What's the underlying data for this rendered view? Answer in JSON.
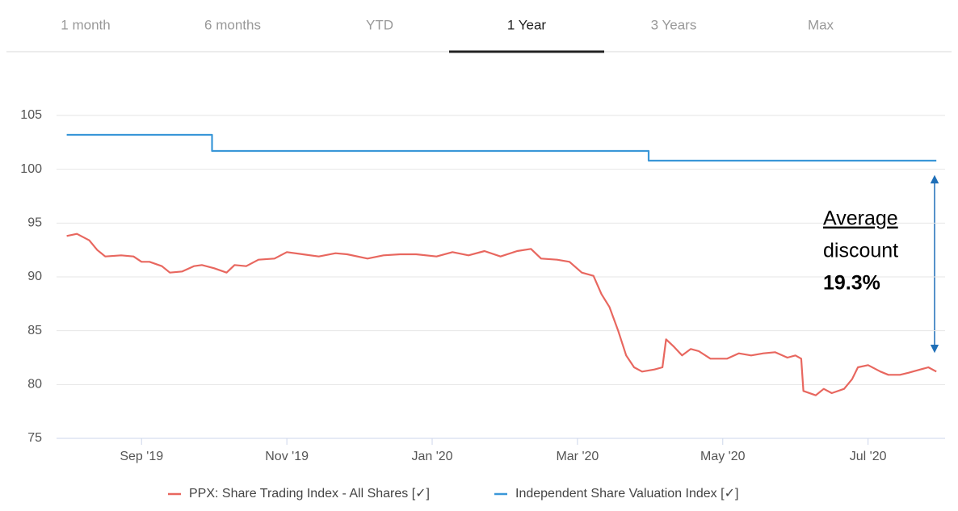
{
  "tabs": [
    "1 month",
    "6 months",
    "YTD",
    "1 Year",
    "3 Years",
    "Max"
  ],
  "selected_tab": 3,
  "chart_data": {
    "type": "line",
    "xlim": [
      -1.17,
      11.06
    ],
    "ylim": [
      75,
      105
    ],
    "xticks": [
      {
        "value": 0,
        "label": "Sep '19"
      },
      {
        "value": 2,
        "label": "Nov '19"
      },
      {
        "value": 4,
        "label": "Jan '20"
      },
      {
        "value": 6,
        "label": "Mar '20"
      },
      {
        "value": 8,
        "label": "May '20"
      },
      {
        "value": 10,
        "label": "Jul '20"
      }
    ],
    "yticks": [
      75,
      80,
      85,
      90,
      95,
      100,
      105
    ],
    "grid": true,
    "series": [
      {
        "name": "PPX: Share Trading Index - All Shares [✓]",
        "color": "#e8675f",
        "x": [
          -1.03,
          -0.89,
          -0.72,
          -0.61,
          -0.5,
          -0.28,
          -0.11,
          0,
          0.11,
          0.28,
          0.39,
          0.56,
          0.72,
          0.83,
          1.0,
          1.17,
          1.28,
          1.44,
          1.61,
          1.83,
          2.0,
          2.22,
          2.44,
          2.67,
          2.83,
          3.11,
          3.33,
          3.56,
          3.78,
          4.06,
          4.28,
          4.5,
          4.72,
          4.94,
          5.17,
          5.36,
          5.5,
          5.72,
          5.89,
          6.06,
          6.22,
          6.33,
          6.44,
          6.56,
          6.67,
          6.78,
          6.89,
          7.06,
          7.17,
          7.22,
          7.33,
          7.44,
          7.56,
          7.67,
          7.83,
          8.06,
          8.22,
          8.39,
          8.56,
          8.72,
          8.89,
          9.0,
          9.08,
          9.11,
          9.28,
          9.39,
          9.5,
          9.67,
          9.78,
          9.86,
          10.0,
          10.17,
          10.28,
          10.44,
          10.56,
          10.72,
          10.83,
          10.94
        ],
        "values": [
          93.8,
          94.0,
          93.4,
          92.5,
          91.9,
          92.0,
          91.9,
          91.4,
          91.4,
          91.0,
          90.4,
          90.5,
          91.0,
          91.1,
          90.8,
          90.4,
          91.1,
          91.0,
          91.6,
          91.7,
          92.3,
          92.1,
          91.9,
          92.2,
          92.1,
          91.7,
          92.0,
          92.1,
          92.1,
          91.9,
          92.3,
          92.0,
          92.4,
          91.9,
          92.4,
          92.6,
          91.7,
          91.6,
          91.4,
          90.4,
          90.1,
          88.4,
          87.2,
          85.0,
          82.7,
          81.6,
          81.2,
          81.4,
          81.6,
          84.2,
          83.5,
          82.7,
          83.3,
          83.1,
          82.4,
          82.4,
          82.9,
          82.7,
          82.9,
          83.0,
          82.5,
          82.7,
          82.4,
          79.4,
          79.0,
          79.6,
          79.2,
          79.6,
          80.5,
          81.6,
          81.8,
          81.2,
          80.9,
          80.9,
          81.1,
          81.4,
          81.6,
          81.2
        ]
      },
      {
        "name": "Independent Share Valuation Index [✓]",
        "color": "#3a97d8",
        "x": [
          -1.03,
          0.97,
          0.97,
          6.98,
          6.98,
          10.94
        ],
        "values": [
          103.2,
          103.2,
          101.7,
          101.7,
          100.8,
          100.8
        ]
      }
    ],
    "annotation": [
      "Average",
      "discount",
      "19.3%"
    ]
  }
}
